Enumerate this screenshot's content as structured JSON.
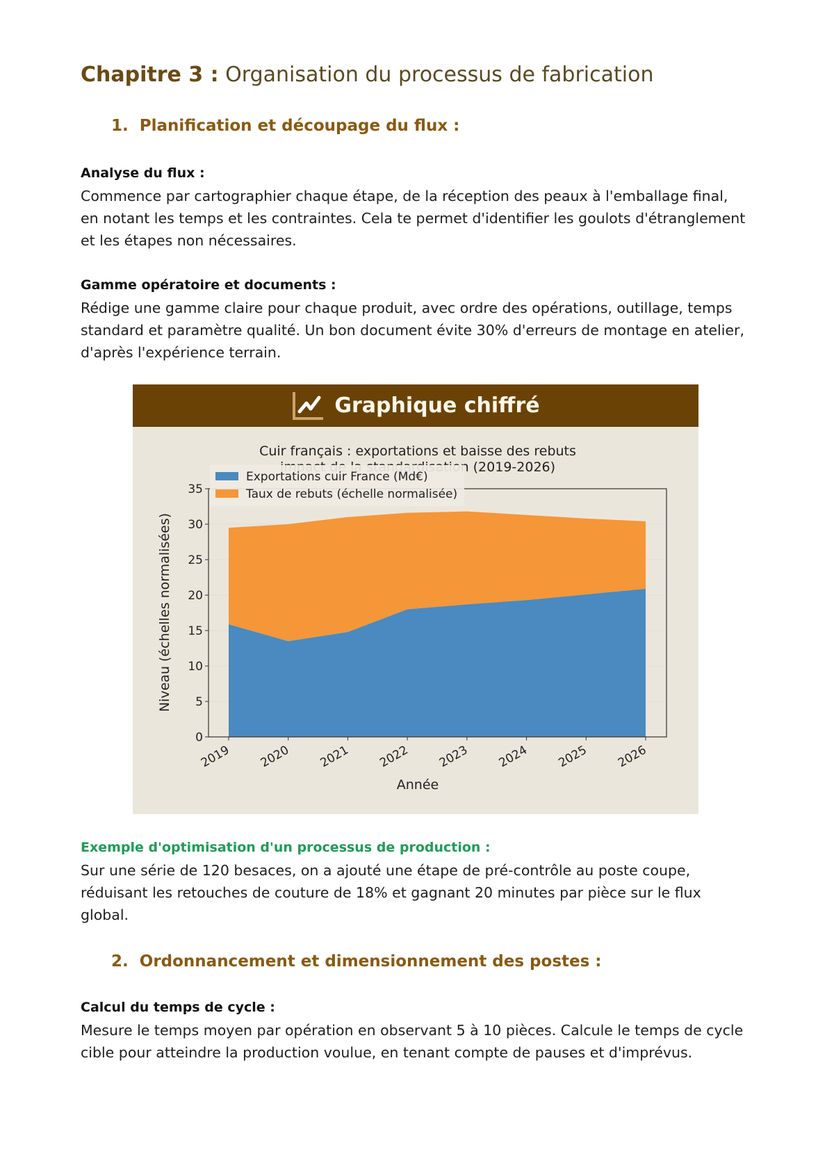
{
  "chapter": {
    "label": "Chapitre 3 :",
    "title": "Organisation du processus de fabrication"
  },
  "section1": {
    "number": "1.",
    "title": "Planification et découpage du flux :"
  },
  "analyse": {
    "heading": "Analyse du flux :",
    "text": "Commence par cartographier chaque étape, de la réception des peaux à l'emballage final, en notant les temps et les contraintes. Cela te permet d'identifier les goulots d'étranglement et les étapes non nécessaires."
  },
  "gamme": {
    "heading": "Gamme opératoire et documents :",
    "text": "Rédige une gamme claire pour chaque produit, avec ordre des opérations, outillage, temps standard et paramètre qualité. Un bon document évite 30% d'erreurs de montage en atelier, d'après l'expérience terrain."
  },
  "chart_box": {
    "header": "Graphique chiffré",
    "icon": "line-chart-icon",
    "header_color": "#6a4206",
    "background": "#ebe6dc"
  },
  "chart_data": {
    "type": "area",
    "stacked": true,
    "title": "Cuir français : exportations et baisse des rebuts",
    "subtitle": "impact de la standardisation (2019-2026)",
    "xlabel": "Année",
    "ylabel": "Niveau (échelles normalisées)",
    "x": [
      "2019",
      "2020",
      "2021",
      "2022",
      "2023",
      "2024",
      "2025",
      "2026"
    ],
    "ylim": [
      0,
      35
    ],
    "yticks": [
      0,
      5,
      10,
      15,
      20,
      25,
      30,
      35
    ],
    "grid": true,
    "legend": "top-left",
    "series": [
      {
        "name": "Exportations cuir France (Md€)",
        "color": "#4a8ac0",
        "values": [
          15.9,
          13.5,
          14.8,
          18.0,
          18.7,
          19.3,
          20.1,
          20.9
        ]
      },
      {
        "name": "Taux de rebuts (échelle normalisée)",
        "color": "#f59638",
        "values": [
          13.6,
          16.5,
          16.2,
          13.6,
          13.1,
          12.0,
          10.7,
          9.5
        ]
      }
    ]
  },
  "example": {
    "heading": "Exemple d'optimisation d'un processus de production :",
    "text": "Sur une série de 120 besaces, on a ajouté une étape de pré-contrôle au poste coupe, réduisant les retouches de couture de 18% et gagnant 20 minutes par pièce sur le flux global."
  },
  "section2": {
    "number": "2.",
    "title": "Ordonnancement et dimensionnement des postes :"
  },
  "cycle": {
    "heading": "Calcul du temps de cycle :",
    "text": "Mesure le temps moyen par opération en observant 5 à 10 pièces. Calcule le temps de cycle cible pour atteindre la production voulue, en tenant compte de pauses et d'imprévus."
  }
}
